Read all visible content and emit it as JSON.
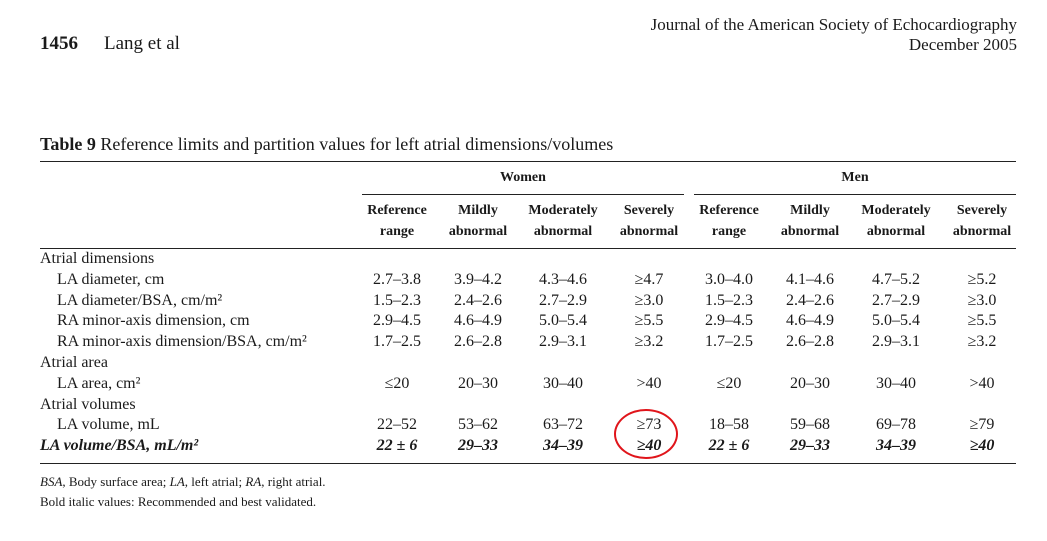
{
  "header": {
    "page_number": "1456",
    "authors": "Lang et al",
    "journal": "Journal of the American Society of Echocardiography",
    "date": "December 2005"
  },
  "table": {
    "caption_label": "Table 9",
    "caption_text": "Reference limits and partition values for left atrial dimensions/volumes",
    "groups": [
      "Women",
      "Men"
    ],
    "columns": [
      [
        "Reference",
        "range"
      ],
      [
        "Mildly",
        "abnormal"
      ],
      [
        "Moderately",
        "abnormal"
      ],
      [
        "Severely",
        "abnormal"
      ],
      [
        "Reference",
        "range"
      ],
      [
        "Mildly",
        "abnormal"
      ],
      [
        "Moderately",
        "abnormal"
      ],
      [
        "Severely",
        "abnormal"
      ]
    ],
    "rows": [
      {
        "label": "Atrial dimensions",
        "section": true,
        "values": []
      },
      {
        "label": "LA diameter, cm",
        "values": [
          "2.7–3.8",
          "3.9–4.2",
          "4.3–4.6",
          "≥4.7",
          "3.0–4.0",
          "4.1–4.6",
          "4.7–5.2",
          "≥5.2"
        ]
      },
      {
        "label": "LA diameter/BSA, cm/m²",
        "values": [
          "1.5–2.3",
          "2.4–2.6",
          "2.7–2.9",
          "≥3.0",
          "1.5–2.3",
          "2.4–2.6",
          "2.7–2.9",
          "≥3.0"
        ]
      },
      {
        "label": "RA minor-axis dimension, cm",
        "values": [
          "2.9–4.5",
          "4.6–4.9",
          "5.0–5.4",
          "≥5.5",
          "2.9–4.5",
          "4.6–4.9",
          "5.0–5.4",
          "≥5.5"
        ]
      },
      {
        "label": "RA minor-axis dimension/BSA, cm/m²",
        "values": [
          "1.7–2.5",
          "2.6–2.8",
          "2.9–3.1",
          "≥3.2",
          "1.7–2.5",
          "2.6–2.8",
          "2.9–3.1",
          "≥3.2"
        ]
      },
      {
        "label": "Atrial area",
        "section": true,
        "values": []
      },
      {
        "label": "LA area, cm²",
        "values": [
          "≤20",
          "20–30",
          "30–40",
          ">40",
          "≤20",
          "20–30",
          "30–40",
          ">40"
        ]
      },
      {
        "label": "Atrial volumes",
        "section": true,
        "values": []
      },
      {
        "label": "LA volume, mL",
        "values": [
          "22–52",
          "53–62",
          "63–72",
          "≥73",
          "18–58",
          "59–68",
          "69–78",
          "≥79"
        ]
      },
      {
        "label": "LA volume/BSA, mL/m²",
        "bold_italic": true,
        "values": [
          "22 ± 6",
          "29–33",
          "34–39",
          "≥40",
          "22 ± 6",
          "29–33",
          "34–39",
          "≥40"
        ]
      }
    ],
    "footnotes": {
      "abbr_bsa": "BSA",
      "abbr_bsa_text": ", Body surface area; ",
      "abbr_la": "LA",
      "abbr_la_text": ", left atrial; ",
      "abbr_ra": "RA",
      "abbr_ra_text": ", right atrial.",
      "line2": "Bold italic values: Recommended and best validated."
    }
  },
  "annotation_color": "#e0151b"
}
